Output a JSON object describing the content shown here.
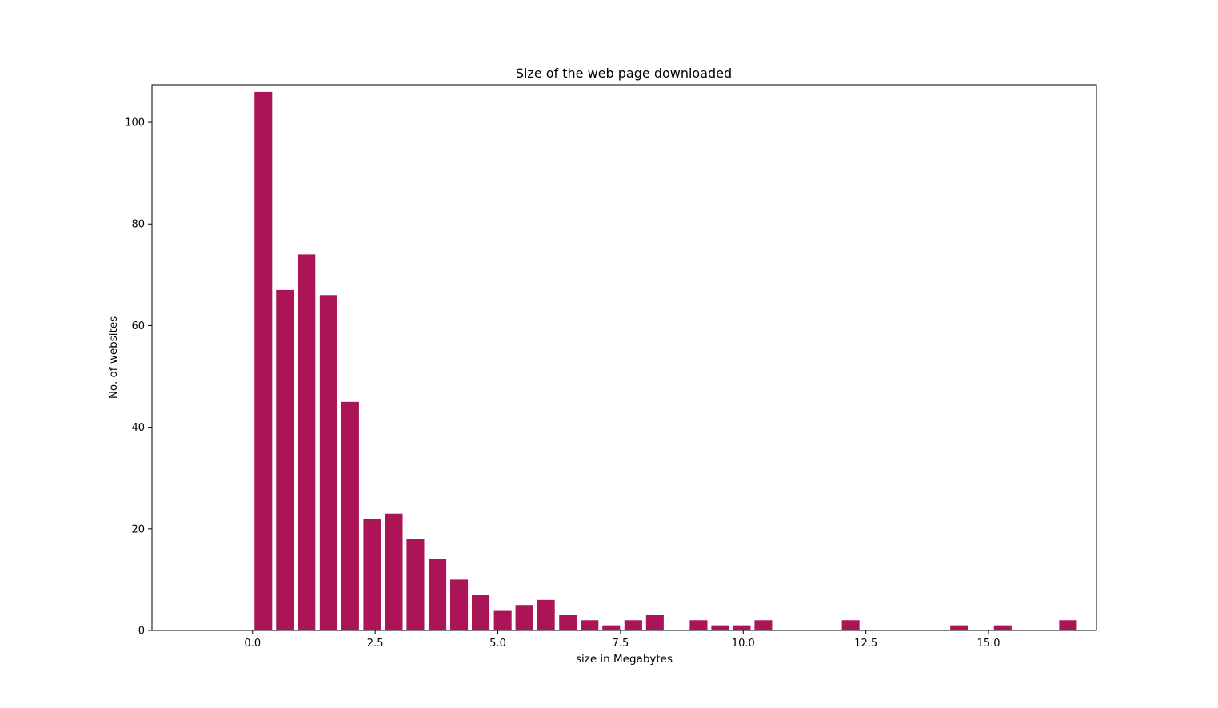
{
  "chart_data": {
    "type": "bar",
    "title": "Size of the web page downloaded",
    "xlabel": "size in Megabytes",
    "ylabel": "No. of websites",
    "bar_color": "#ab1456",
    "xlim": [
      -2.05,
      17.2
    ],
    "ylim": [
      0,
      107.4
    ],
    "bar_width": 0.36,
    "grid": false,
    "legend": "none",
    "xticks": [
      0,
      2.5,
      5,
      7.5,
      10,
      12.5,
      15
    ],
    "xtick_labels": [
      "0.0",
      "2.5",
      "5.0",
      "7.5",
      "10.0",
      "12.5",
      "15.0"
    ],
    "yticks": [
      0,
      20,
      40,
      60,
      80,
      100
    ],
    "ytick_labels": [
      "0",
      "20",
      "40",
      "60",
      "80",
      "100"
    ],
    "x": [
      0.22,
      0.66,
      1.1,
      1.55,
      1.99,
      2.44,
      2.88,
      3.32,
      3.77,
      4.21,
      4.65,
      5.1,
      5.54,
      5.98,
      6.43,
      6.87,
      7.31,
      7.76,
      8.2,
      9.09,
      9.53,
      9.97,
      10.41,
      12.19,
      14.4,
      15.29,
      16.62
    ],
    "values": [
      106,
      67,
      74,
      66,
      45,
      22,
      23,
      18,
      14,
      10,
      7,
      4,
      5,
      6,
      3,
      2,
      1,
      2,
      3,
      2,
      1,
      1,
      2,
      2,
      1,
      1,
      2
    ]
  }
}
